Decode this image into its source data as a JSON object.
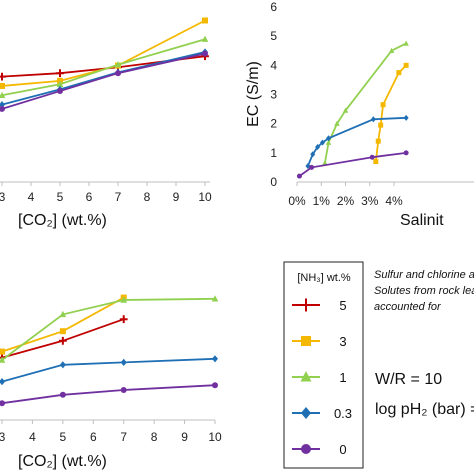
{
  "legend": {
    "header": "[NH₃] wt.%",
    "entries": [
      {
        "label": "5",
        "color": "#c00000",
        "marker": "plus"
      },
      {
        "label": "3",
        "color": "#f5b800",
        "marker": "square"
      },
      {
        "label": "1",
        "color": "#92d050",
        "marker": "triangle"
      },
      {
        "label": "0.3",
        "color": "#1f6fb5",
        "marker": "diamond"
      },
      {
        "label": "0",
        "color": "#7030a0",
        "marker": "circle"
      }
    ]
  },
  "notes": {
    "line1": "Sulfur and chlorine a",
    "line2": "Solutes from rock lea",
    "line3": "accounted for",
    "wr": "W/R = 10",
    "ph2": "log pH₂ (bar) ="
  },
  "chart_data": [
    {
      "id": "top-left",
      "type": "line",
      "xlabel": "[CO₂] (wt.%)",
      "x_ticks": [
        "3",
        "4",
        "5",
        "6",
        "7",
        "8",
        "9",
        "10"
      ],
      "xlim": [
        3,
        10
      ],
      "series": [
        {
          "name": "5",
          "x": [
            3,
            5,
            7,
            10
          ],
          "y": [
            0.62,
            0.64,
            0.675,
            0.74
          ]
        },
        {
          "name": "3",
          "x": [
            3,
            5,
            7,
            10
          ],
          "y": [
            0.565,
            0.595,
            0.685,
            0.95
          ]
        },
        {
          "name": "1",
          "x": [
            3,
            5,
            7,
            10
          ],
          "y": [
            0.51,
            0.575,
            0.69,
            0.84
          ]
        },
        {
          "name": "0.3",
          "x": [
            3,
            5,
            7,
            10
          ],
          "y": [
            0.455,
            0.545,
            0.645,
            0.765
          ]
        },
        {
          "name": "0",
          "x": [
            3,
            5,
            7,
            10
          ],
          "y": [
            0.43,
            0.535,
            0.64,
            0.755
          ]
        }
      ]
    },
    {
      "id": "top-right",
      "type": "line",
      "ylabel": "EC (S/m)",
      "xlabel": "Salinit",
      "y_ticks": [
        "0",
        "1",
        "2",
        "3",
        "4",
        "5",
        "6"
      ],
      "ylim": [
        0,
        6
      ],
      "x_ticks": [
        "0%",
        "1%",
        "2%",
        "3%",
        "4%"
      ],
      "xlim": [
        0,
        4.4
      ],
      "series": [
        {
          "name": "1",
          "x": [
            1.15,
            1.3,
            1.65,
            2.0,
            3.9,
            4.5
          ],
          "y": [
            0.65,
            1.35,
            2.0,
            2.45,
            4.5,
            4.75
          ]
        },
        {
          "name": "3",
          "x": [
            3.25,
            3.35,
            3.45,
            3.55,
            4.2,
            4.5
          ],
          "y": [
            0.7,
            1.4,
            1.95,
            2.65,
            3.75,
            4.0
          ]
        },
        {
          "name": "0.3",
          "x": [
            0.45,
            0.65,
            0.85,
            1.05,
            1.3,
            3.15,
            4.5
          ],
          "y": [
            0.55,
            0.95,
            1.2,
            1.35,
            1.5,
            2.15,
            2.2
          ]
        },
        {
          "name": "0",
          "x": [
            0.1,
            0.6,
            3.1,
            4.5
          ],
          "y": [
            0.2,
            0.5,
            0.85,
            1.0
          ]
        }
      ]
    },
    {
      "id": "bottom-left",
      "type": "line",
      "xlabel": "[CO₂] (wt.%)",
      "x_ticks": [
        "3",
        "4",
        "5",
        "6",
        "7",
        "8",
        "9",
        "10"
      ],
      "xlim": [
        3,
        10
      ],
      "series": [
        {
          "name": "5",
          "x": [
            3,
            5,
            7
          ],
          "y": [
            0.42,
            0.56,
            0.74
          ]
        },
        {
          "name": "3",
          "x": [
            3,
            5,
            7
          ],
          "y": [
            0.47,
            0.64,
            0.92
          ]
        },
        {
          "name": "1",
          "x": [
            3,
            5,
            7,
            10
          ],
          "y": [
            0.4,
            0.78,
            0.9,
            0.91
          ]
        },
        {
          "name": "0.3",
          "x": [
            3,
            5,
            7,
            10
          ],
          "y": [
            0.22,
            0.36,
            0.38,
            0.41
          ]
        },
        {
          "name": "0",
          "x": [
            3,
            5,
            7,
            10
          ],
          "y": [
            0.04,
            0.11,
            0.15,
            0.19
          ]
        }
      ]
    }
  ]
}
